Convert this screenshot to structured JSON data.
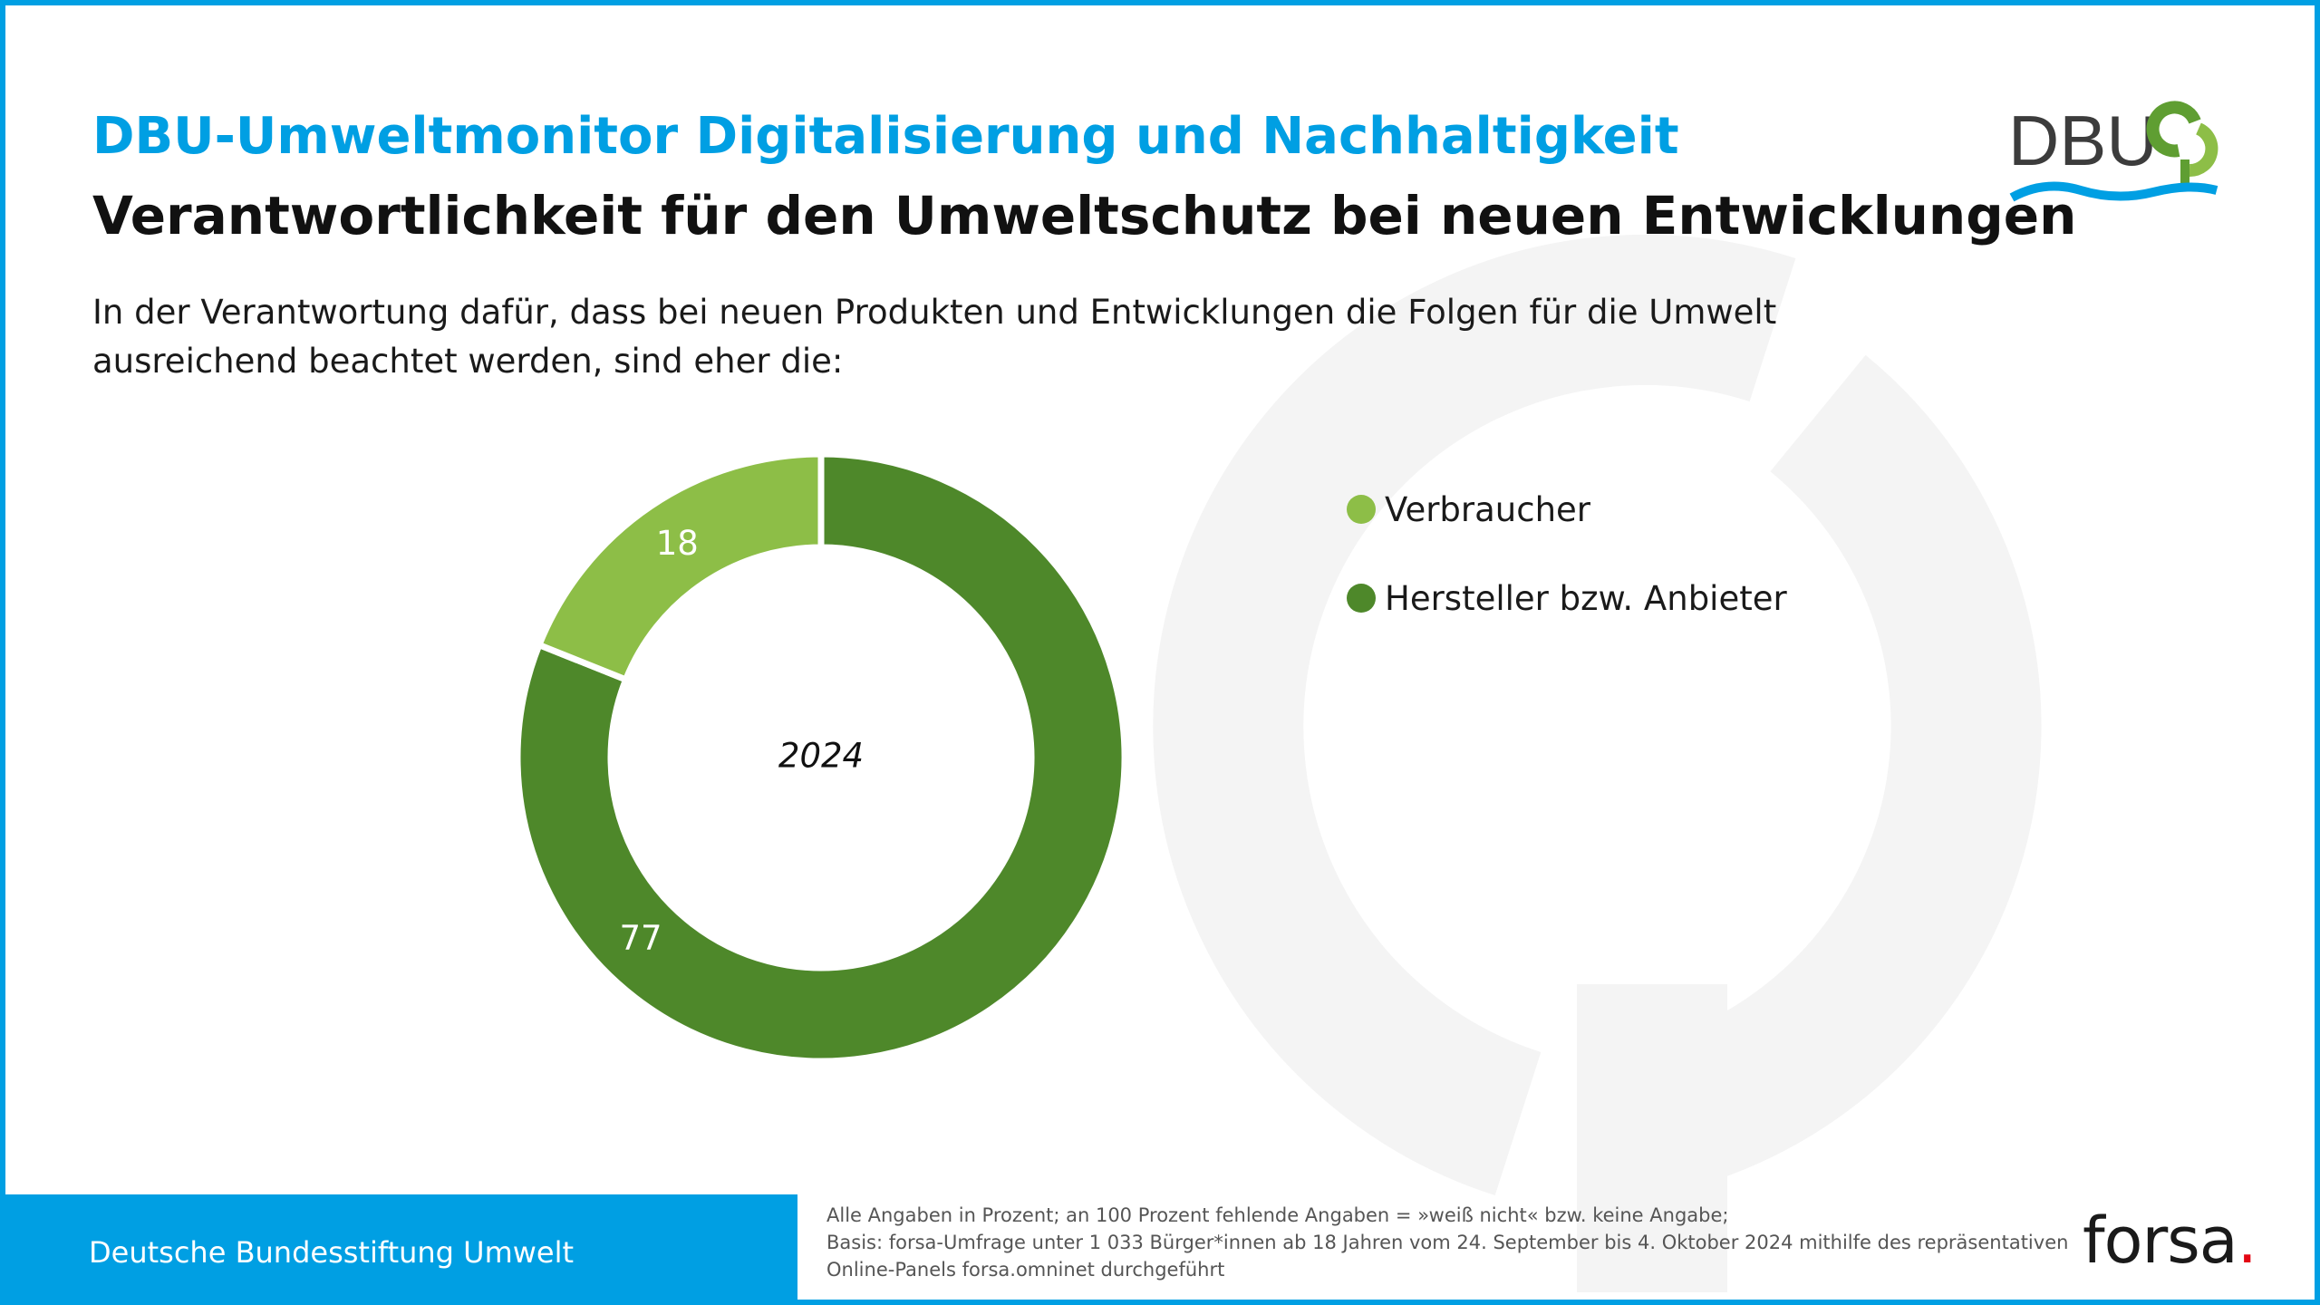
{
  "header": {
    "kicker": "DBU-Umweltmonitor Digitalisierung und Nachhaltigkeit",
    "title": "Verantwortlichkeit für den Umweltschutz bei neuen Entwicklungen",
    "question": "In der Verantwortung dafür, dass bei neuen Produkten und Entwicklungen die Folgen für die Umwelt ausreichend beachtet werden, sind eher die:"
  },
  "logo": {
    "text": "DBU",
    "icon": "dbu-logo-icon"
  },
  "chart_data": {
    "type": "pie",
    "donut": true,
    "center_label": "2024",
    "series": [
      {
        "name": "Verbraucher",
        "value": 18,
        "color": "#8dbe47"
      },
      {
        "name": "Hersteller bzw. Anbieter",
        "value": 77,
        "color": "#4e882a"
      }
    ],
    "legend_position": "right"
  },
  "footer": {
    "organization": "Deutsche Bundesstiftung Umwelt",
    "note_line1": "Alle Angaben in Prozent; an 100 Prozent fehlende Angaben = »weiß nicht« bzw. keine Angabe;",
    "note_line2": "Basis: forsa-Umfrage unter 1 033 Bürger*innen ab 18 Jahren vom 24. September bis 4. Oktober 2024 mithilfe des repräsentativen",
    "note_line3": "Online-Panels forsa.omninet durchgeführt",
    "brand": "forsa",
    "brand_dot": "."
  },
  "colors": {
    "accent": "#009fe3",
    "light_green": "#8dbe47",
    "dark_green": "#4e882a",
    "forsa_red": "#e30613"
  }
}
